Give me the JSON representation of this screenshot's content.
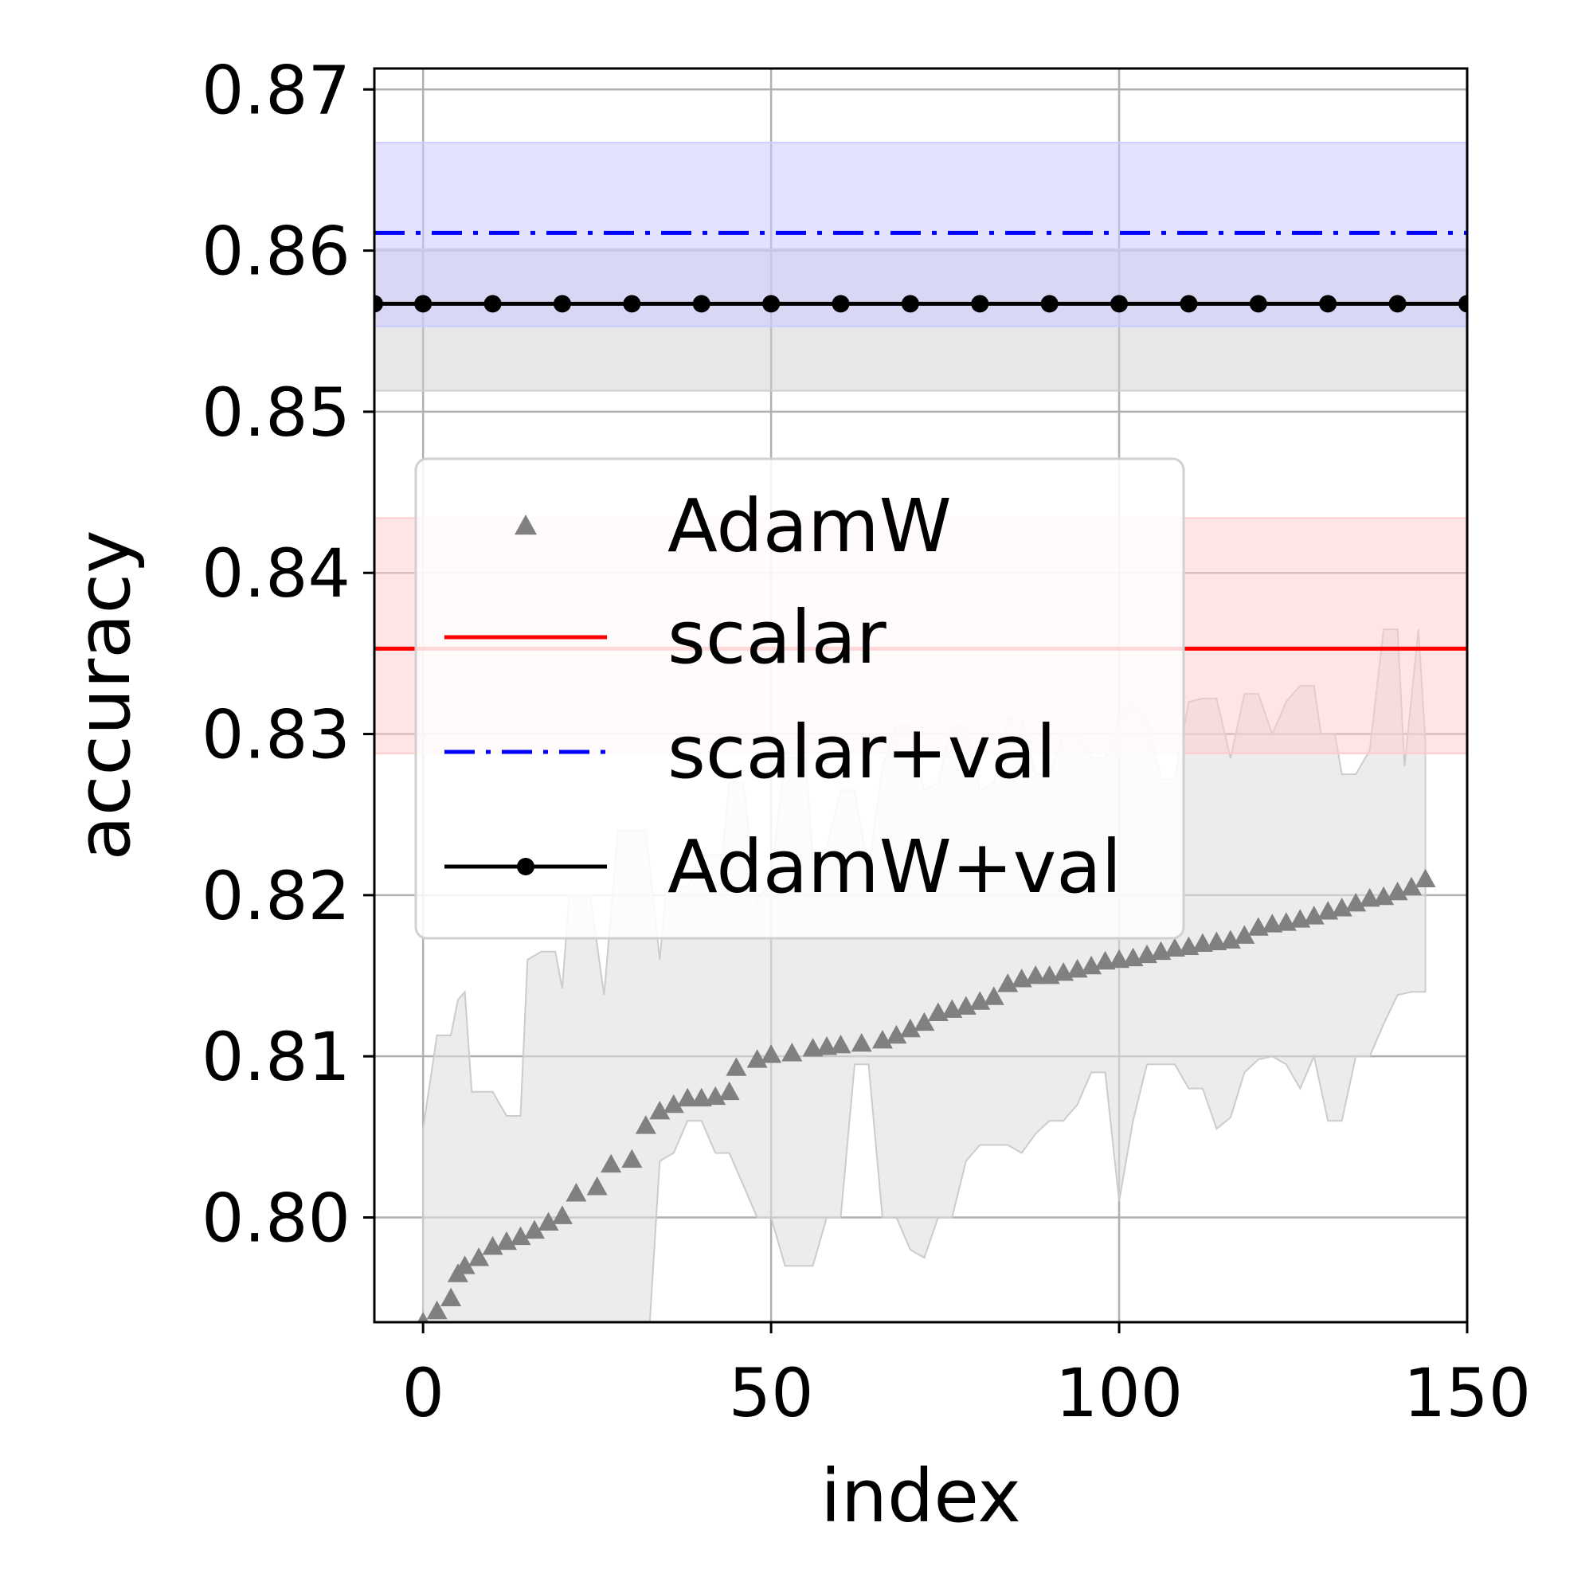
{
  "chart_data": {
    "type": "line",
    "xlabel": "index",
    "ylabel": "accuracy",
    "xlim": [
      -7,
      150
    ],
    "ylim": [
      0.7935,
      0.8713
    ],
    "x_ticks": [
      0,
      50,
      100,
      150
    ],
    "x_tick_labels": [
      "0",
      "50",
      "100",
      "150"
    ],
    "y_ticks": [
      0.8,
      0.81,
      0.82,
      0.83,
      0.84,
      0.85,
      0.86,
      0.87
    ],
    "y_tick_labels": [
      "0.80",
      "0.81",
      "0.82",
      "0.83",
      "0.84",
      "0.85",
      "0.86",
      "0.87"
    ],
    "grid": true,
    "legend_position": "center-left",
    "series": [
      {
        "name": "AdamW",
        "kind": "scatter-triangle",
        "color": "#808080",
        "band_color": "#e0e0e0",
        "points": [
          [
            0,
            0.7935
          ],
          [
            2,
            0.7942
          ],
          [
            4,
            0.795
          ],
          [
            5,
            0.7965
          ],
          [
            6,
            0.797
          ],
          [
            8,
            0.7975
          ],
          [
            10,
            0.7982
          ],
          [
            12,
            0.7985
          ],
          [
            14,
            0.7988
          ],
          [
            16,
            0.7992
          ],
          [
            18,
            0.7997
          ],
          [
            20,
            0.8001
          ],
          [
            22,
            0.8015
          ],
          [
            25,
            0.8019
          ],
          [
            27,
            0.8033
          ],
          [
            30,
            0.8036
          ],
          [
            32,
            0.8057
          ],
          [
            34,
            0.8066
          ],
          [
            36,
            0.807
          ],
          [
            38,
            0.8074
          ],
          [
            40,
            0.8074
          ],
          [
            42,
            0.8075
          ],
          [
            44,
            0.8078
          ],
          [
            45,
            0.8093
          ],
          [
            48,
            0.8098
          ],
          [
            50,
            0.8101
          ],
          [
            53,
            0.8102
          ],
          [
            56,
            0.8105
          ],
          [
            58,
            0.8106
          ],
          [
            60,
            0.8107
          ],
          [
            63,
            0.8108
          ],
          [
            66,
            0.811
          ],
          [
            68,
            0.8113
          ],
          [
            70,
            0.8117
          ],
          [
            72,
            0.8121
          ],
          [
            74,
            0.8127
          ],
          [
            76,
            0.8129
          ],
          [
            78,
            0.8131
          ],
          [
            80,
            0.8134
          ],
          [
            82,
            0.8137
          ],
          [
            84,
            0.8145
          ],
          [
            86,
            0.8148
          ],
          [
            88,
            0.815
          ],
          [
            90,
            0.815
          ],
          [
            92,
            0.8152
          ],
          [
            94,
            0.8154
          ],
          [
            96,
            0.8156
          ],
          [
            98,
            0.8159
          ],
          [
            100,
            0.816
          ],
          [
            102,
            0.8161
          ],
          [
            104,
            0.8163
          ],
          [
            106,
            0.8165
          ],
          [
            108,
            0.8167
          ],
          [
            110,
            0.8168
          ],
          [
            112,
            0.817
          ],
          [
            114,
            0.8171
          ],
          [
            116,
            0.8172
          ],
          [
            118,
            0.8175
          ],
          [
            120,
            0.818
          ],
          [
            122,
            0.8182
          ],
          [
            124,
            0.8183
          ],
          [
            126,
            0.8185
          ],
          [
            128,
            0.8187
          ],
          [
            130,
            0.819
          ],
          [
            132,
            0.8192
          ],
          [
            134,
            0.8195
          ],
          [
            136,
            0.8198
          ],
          [
            138,
            0.8199
          ],
          [
            140,
            0.8202
          ],
          [
            142,
            0.8205
          ],
          [
            144,
            0.821
          ]
        ],
        "band_upper": [
          [
            0,
            0.8055
          ],
          [
            2,
            0.8113
          ],
          [
            4,
            0.8113
          ],
          [
            5,
            0.8135
          ],
          [
            6,
            0.814
          ],
          [
            7,
            0.8078
          ],
          [
            10,
            0.8078
          ],
          [
            12,
            0.8063
          ],
          [
            14,
            0.8063
          ],
          [
            15,
            0.816
          ],
          [
            17,
            0.8165
          ],
          [
            19,
            0.8165
          ],
          [
            20,
            0.8142
          ],
          [
            21,
            0.82
          ],
          [
            24,
            0.82
          ],
          [
            26,
            0.8138
          ],
          [
            28,
            0.824
          ],
          [
            32,
            0.824
          ],
          [
            34,
            0.816
          ],
          [
            35,
            0.8205
          ],
          [
            38,
            0.8205
          ],
          [
            40,
            0.8225
          ],
          [
            43,
            0.8225
          ],
          [
            44,
            0.827
          ],
          [
            46,
            0.827
          ],
          [
            48,
            0.8195
          ],
          [
            50,
            0.821
          ],
          [
            52,
            0.8285
          ],
          [
            55,
            0.8285
          ],
          [
            56,
            0.822
          ],
          [
            58,
            0.823
          ],
          [
            60,
            0.8265
          ],
          [
            62,
            0.8265
          ],
          [
            64,
            0.8215
          ],
          [
            66,
            0.828
          ],
          [
            68,
            0.8305
          ],
          [
            70,
            0.8305
          ],
          [
            72,
            0.8265
          ],
          [
            74,
            0.827
          ],
          [
            76,
            0.8305
          ],
          [
            78,
            0.8305
          ],
          [
            80,
            0.8265
          ],
          [
            82,
            0.827
          ],
          [
            84,
            0.831
          ],
          [
            86,
            0.831
          ],
          [
            88,
            0.8275
          ],
          [
            90,
            0.8275
          ],
          [
            92,
            0.83
          ],
          [
            94,
            0.83
          ],
          [
            96,
            0.8285
          ],
          [
            98,
            0.8285
          ],
          [
            100,
            0.831
          ],
          [
            102,
            0.832
          ],
          [
            104,
            0.831
          ],
          [
            106,
            0.8272
          ],
          [
            108,
            0.8272
          ],
          [
            110,
            0.832
          ],
          [
            112,
            0.8322
          ],
          [
            114,
            0.8322
          ],
          [
            116,
            0.8285
          ],
          [
            118,
            0.8325
          ],
          [
            120,
            0.8325
          ],
          [
            122,
            0.83
          ],
          [
            124,
            0.832
          ],
          [
            126,
            0.833
          ],
          [
            128,
            0.833
          ],
          [
            129,
            0.83
          ],
          [
            131,
            0.83
          ],
          [
            132,
            0.8275
          ],
          [
            134,
            0.8275
          ],
          [
            136,
            0.829
          ],
          [
            138,
            0.8365
          ],
          [
            140,
            0.8365
          ],
          [
            141,
            0.828
          ],
          [
            143,
            0.8365
          ],
          [
            144,
            0.8295
          ]
        ],
        "band_lower": [
          [
            0,
            0.7935
          ],
          [
            5,
            0.7935
          ],
          [
            6,
            0.7915
          ],
          [
            9,
            0.7915
          ],
          [
            10,
            0.7935
          ],
          [
            14,
            0.7935
          ],
          [
            15,
            0.79
          ],
          [
            17,
            0.788
          ],
          [
            19,
            0.788
          ],
          [
            20,
            0.7935
          ],
          [
            24,
            0.7935
          ],
          [
            26,
            0.79
          ],
          [
            28,
            0.7895
          ],
          [
            32,
            0.7895
          ],
          [
            34,
            0.8035
          ],
          [
            36,
            0.804
          ],
          [
            38,
            0.806
          ],
          [
            40,
            0.806
          ],
          [
            42,
            0.804
          ],
          [
            44,
            0.804
          ],
          [
            46,
            0.802
          ],
          [
            48,
            0.8
          ],
          [
            50,
            0.8
          ],
          [
            52,
            0.797
          ],
          [
            55,
            0.797
          ],
          [
            56,
            0.797
          ],
          [
            58,
            0.8
          ],
          [
            60,
            0.8
          ],
          [
            62,
            0.8095
          ],
          [
            64,
            0.8095
          ],
          [
            66,
            0.8
          ],
          [
            68,
            0.8
          ],
          [
            70,
            0.798
          ],
          [
            72,
            0.7975
          ],
          [
            74,
            0.8
          ],
          [
            76,
            0.8
          ],
          [
            78,
            0.8035
          ],
          [
            80,
            0.8045
          ],
          [
            82,
            0.8045
          ],
          [
            84,
            0.8045
          ],
          [
            86,
            0.804
          ],
          [
            88,
            0.8052
          ],
          [
            90,
            0.806
          ],
          [
            92,
            0.806
          ],
          [
            94,
            0.807
          ],
          [
            96,
            0.809
          ],
          [
            98,
            0.809
          ],
          [
            100,
            0.801
          ],
          [
            102,
            0.806
          ],
          [
            104,
            0.8095
          ],
          [
            106,
            0.8095
          ],
          [
            108,
            0.8095
          ],
          [
            110,
            0.808
          ],
          [
            112,
            0.808
          ],
          [
            114,
            0.8055
          ],
          [
            116,
            0.8062
          ],
          [
            118,
            0.809
          ],
          [
            120,
            0.8098
          ],
          [
            122,
            0.81
          ],
          [
            124,
            0.8095
          ],
          [
            126,
            0.808
          ],
          [
            128,
            0.81
          ],
          [
            130,
            0.806
          ],
          [
            132,
            0.806
          ],
          [
            134,
            0.81
          ],
          [
            136,
            0.81
          ],
          [
            138,
            0.812
          ],
          [
            140,
            0.8138
          ],
          [
            142,
            0.814
          ],
          [
            144,
            0.814
          ]
        ]
      },
      {
        "name": "scalar",
        "kind": "hline",
        "color": "#ff0000",
        "band_color": "#ffcccc",
        "value": 0.8353,
        "band": [
          0.8288,
          0.8434
        ]
      },
      {
        "name": "scalar+val",
        "kind": "hline-dashdot",
        "color": "#0000ff",
        "band_color": "#ccccff",
        "value": 0.8611,
        "band": [
          0.8553,
          0.8667
        ]
      },
      {
        "name": "AdamW+val",
        "kind": "hline-markers",
        "color": "#000000",
        "band_color": "#cfcfcf",
        "value": 0.8567,
        "band": [
          0.8513,
          0.8601
        ],
        "marker_x": [
          -7,
          0,
          10,
          20,
          30,
          40,
          50,
          60,
          70,
          80,
          90,
          100,
          110,
          120,
          130,
          140,
          150
        ]
      }
    ],
    "legend": {
      "entries": [
        "AdamW",
        "scalar",
        "scalar+val",
        "AdamW+val"
      ]
    }
  }
}
